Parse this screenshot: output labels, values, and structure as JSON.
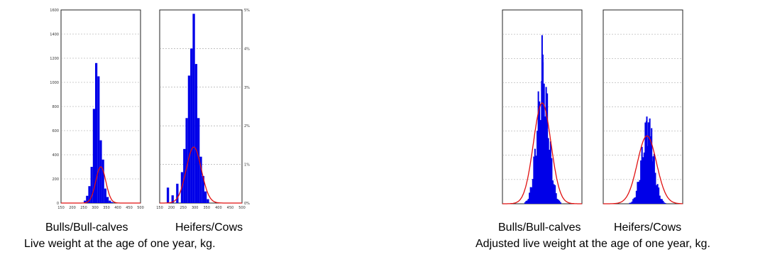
{
  "figure_left": {
    "caption": "Live weight at the age of one year, kg.",
    "left_label": "Bulls/Bull-calves",
    "right_label": "Heifers/Cows"
  },
  "figure_right": {
    "caption": "Adjusted live weight at the age of one year, kg.",
    "left_label": "Bulls/Bull-calves",
    "right_label": "Heifers/Cows"
  },
  "chart_data": [
    {
      "type": "bar",
      "group": "Live weight at the age of one year, kg.",
      "panel": "Bulls/Bull-calves",
      "x_ticks": [
        "150",
        "200",
        "250",
        "300",
        "350",
        "400",
        "450",
        "500"
      ],
      "y_ticks": [
        "0",
        "200",
        "400",
        "600",
        "800",
        "1000",
        "1200",
        "1400",
        "1600"
      ],
      "xlim": [
        150,
        500
      ],
      "ylim": [
        0,
        1600
      ],
      "bins": {
        "x": [
          250,
          260,
          270,
          280,
          290,
          300,
          310,
          320,
          330,
          340,
          350,
          360,
          370
        ],
        "values": [
          20,
          60,
          140,
          300,
          780,
          1160,
          1050,
          520,
          360,
          120,
          50,
          20,
          8
        ]
      },
      "normal_fit": {
        "mean": 325,
        "sd": 22,
        "peak": 300
      },
      "grid": true
    },
    {
      "type": "bar",
      "group": "Live weight at the age of one year, kg.",
      "panel": "Heifers/Cows",
      "x_ticks": [
        "150",
        "200",
        "250",
        "300",
        "350",
        "400",
        "450",
        "500"
      ],
      "y_ticks": [
        "0%",
        "1%",
        "2%",
        "3%",
        "4%",
        "5%"
      ],
      "xlim": [
        150,
        500
      ],
      "ylim": [
        0,
        5
      ],
      "bins": {
        "x": [
          180,
          200,
          220,
          240,
          250,
          260,
          270,
          280,
          290,
          300,
          310,
          320,
          330,
          340,
          350
        ],
        "values": [
          0.4,
          0.2,
          0.5,
          0.8,
          1.4,
          2.2,
          3.3,
          4.0,
          4.9,
          3.6,
          2.2,
          1.2,
          0.7,
          0.3,
          0.1
        ]
      },
      "normal_fit": {
        "mean": 295,
        "sd": 32,
        "peak": 1.45
      },
      "grid": true
    },
    {
      "type": "bar",
      "group": "Adjusted live weight at the age of one year, kg.",
      "panel": "Bulls/Bull-calves",
      "grid": true
    },
    {
      "type": "bar",
      "group": "Adjusted live weight at the age of one year, kg.",
      "panel": "Heifers/Cows",
      "grid": true
    }
  ]
}
